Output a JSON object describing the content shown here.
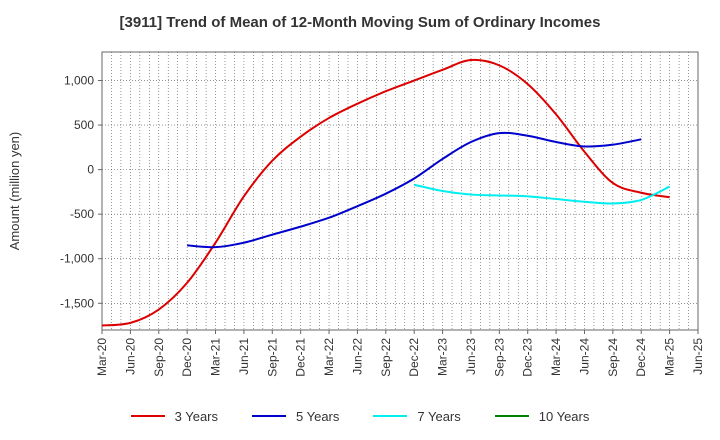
{
  "chart_data": {
    "type": "line",
    "title": "[3911]  Trend of Mean of 12-Month Moving Sum of Ordinary Incomes",
    "ylabel": "Amount (million yen)",
    "xlabel": "",
    "ylim": [
      -1800,
      1320
    ],
    "yticks": [
      1000,
      500,
      0,
      -500,
      -1000,
      -1500
    ],
    "ytick_labels": [
      "1,000",
      "500",
      "0",
      "-500",
      "-1,000",
      "-1,500"
    ],
    "x_ticks": [
      "Mar-20",
      "Jun-20",
      "Sep-20",
      "Dec-20",
      "Mar-21",
      "Jun-21",
      "Sep-21",
      "Dec-21",
      "Mar-22",
      "Jun-22",
      "Sep-22",
      "Dec-22",
      "Mar-23",
      "Jun-23",
      "Sep-23",
      "Dec-23",
      "Mar-24",
      "Jun-24",
      "Sep-24",
      "Dec-24",
      "Mar-25",
      "Jun-25"
    ],
    "grid": true,
    "legend_position": "bottom",
    "series": [
      {
        "name": "3 Years",
        "color": "#dd0000",
        "start_index": 0,
        "values": [
          -1750,
          -1720,
          -1570,
          -1270,
          -820,
          -300,
          100,
          370,
          580,
          740,
          880,
          1000,
          1120,
          1230,
          1170,
          960,
          620,
          200,
          -150,
          -260,
          -310
        ]
      },
      {
        "name": "5 Years",
        "color": "#0000cc",
        "start_index": 3,
        "values": [
          -850,
          -870,
          -820,
          -730,
          -640,
          -540,
          -410,
          -270,
          -100,
          120,
          310,
          410,
          380,
          310,
          260,
          280,
          340
        ]
      },
      {
        "name": "7 Years",
        "color": "#00eeee",
        "start_index": 11,
        "values": [
          -170,
          -240,
          -280,
          -290,
          -300,
          -330,
          -360,
          -380,
          -340,
          -190
        ]
      },
      {
        "name": "10 Years",
        "color": "#008000",
        "start_index": 0,
        "values": []
      }
    ]
  }
}
